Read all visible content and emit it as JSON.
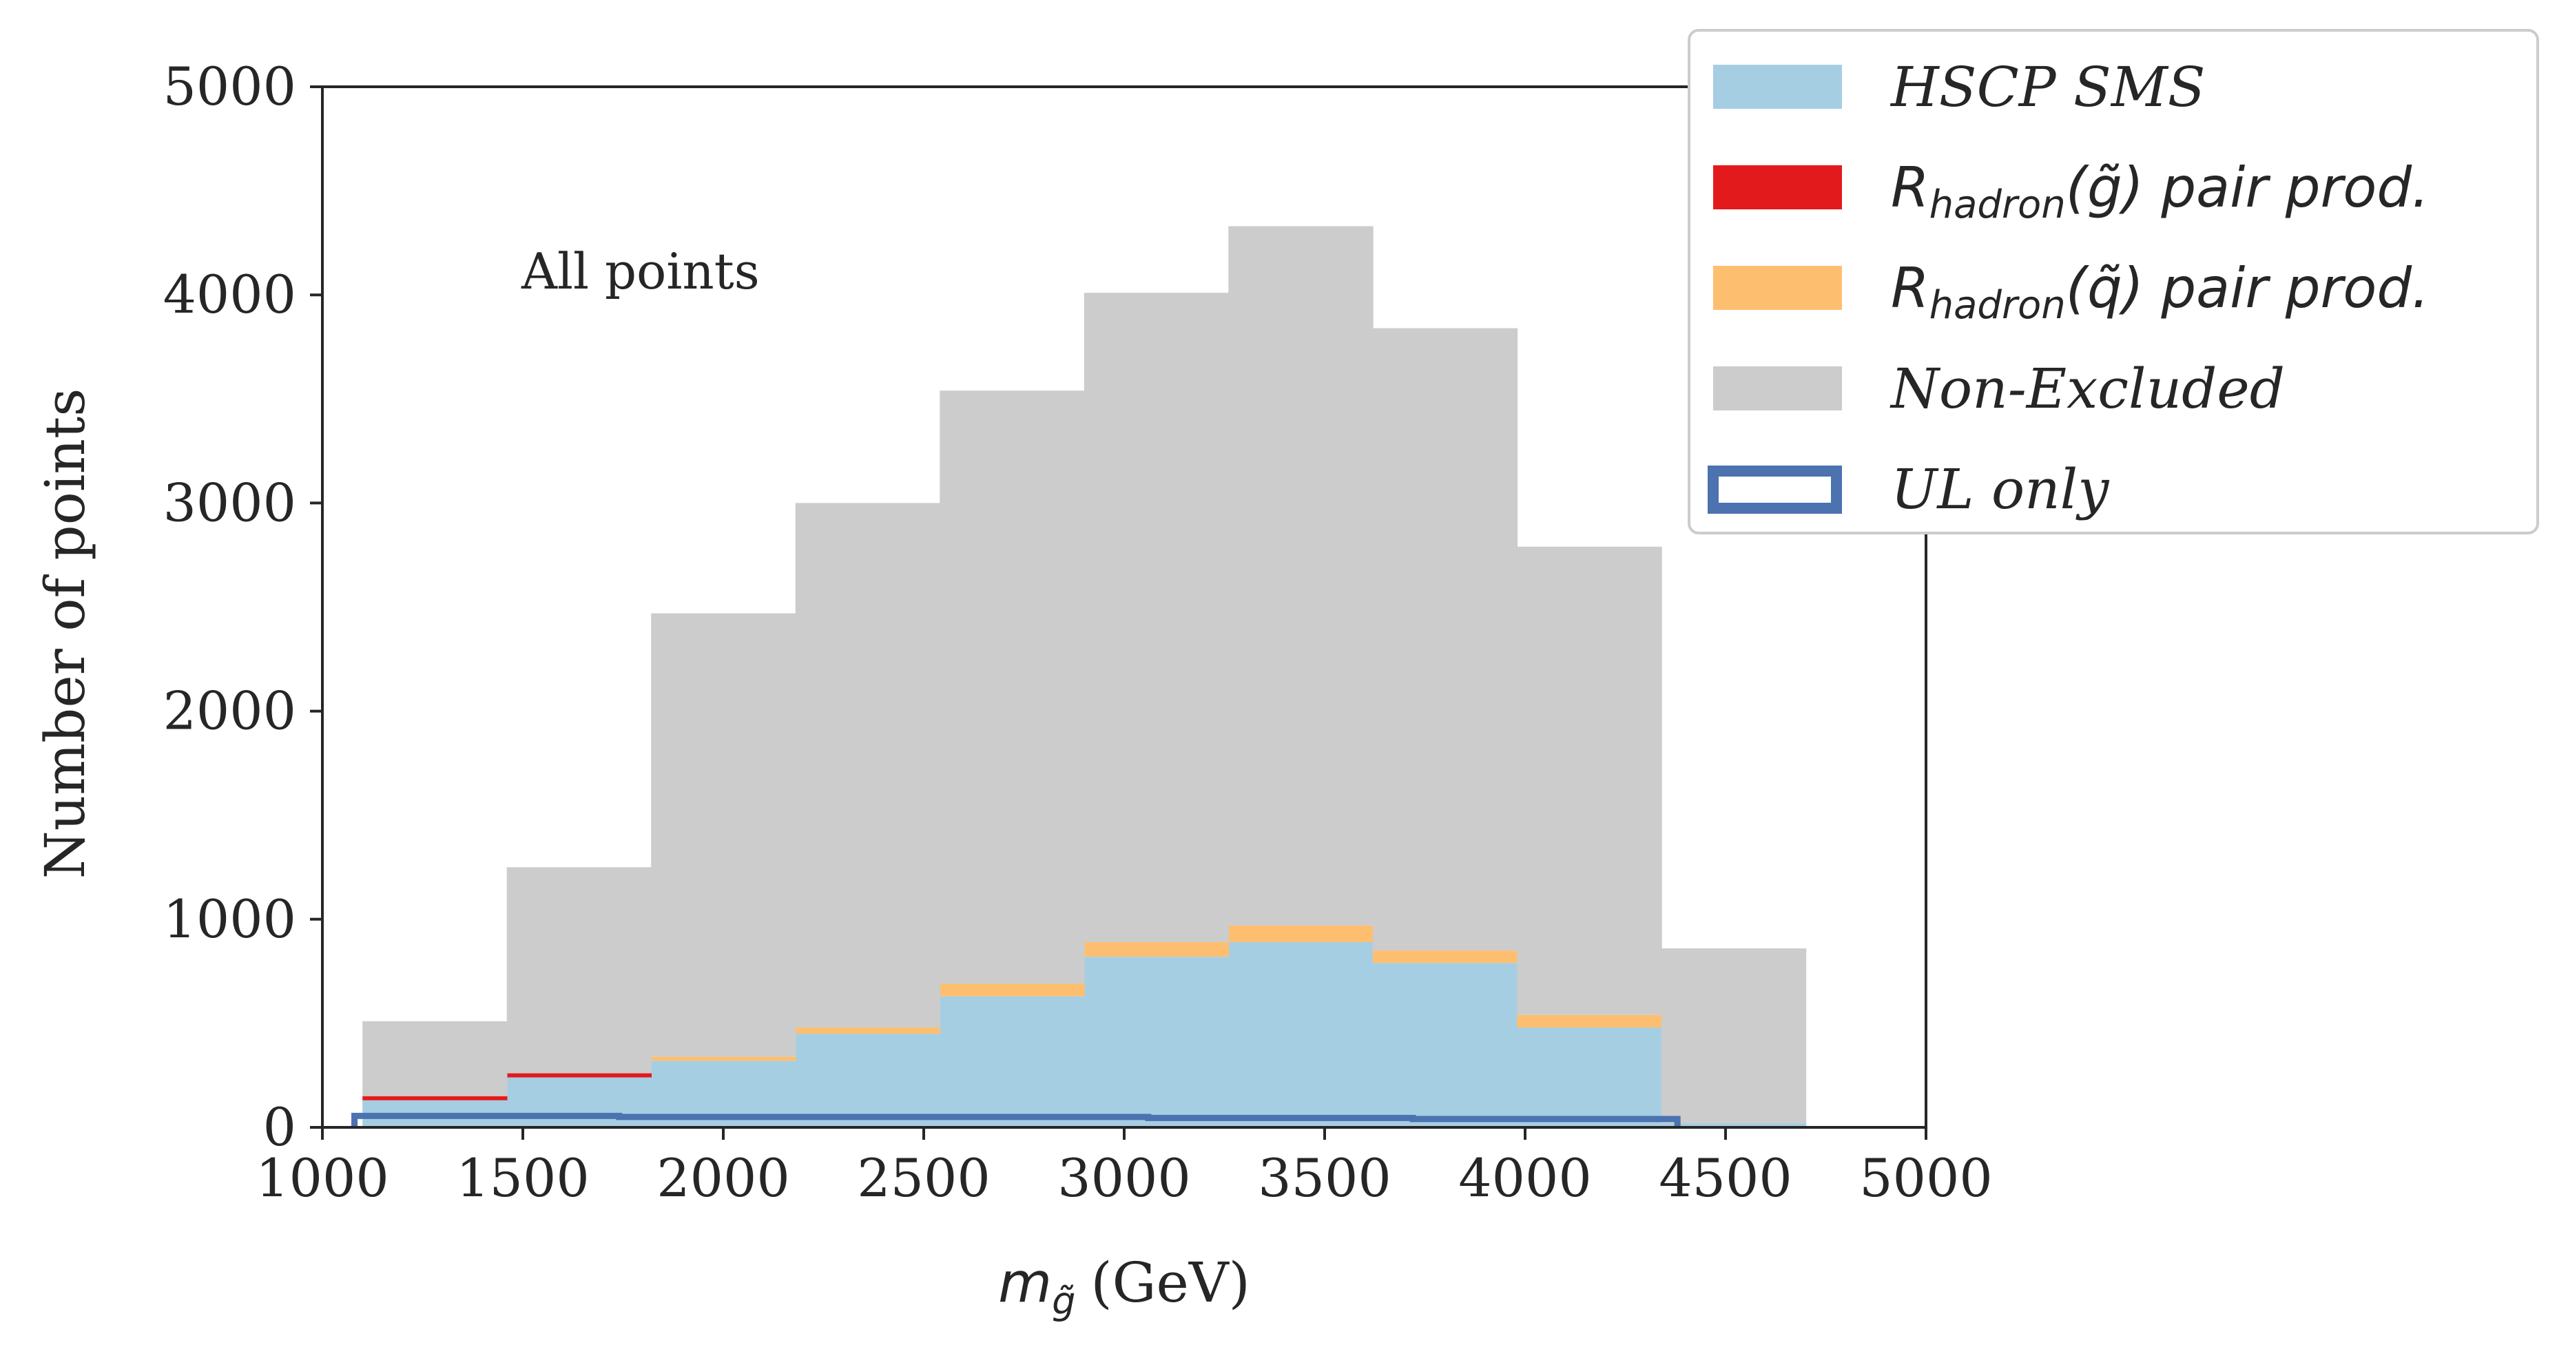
{
  "chart_data": {
    "type": "bar",
    "subtype": "stacked-histogram",
    "xlabel_base": "m",
    "xlabel_sub": "g̃",
    "xlabel_unit": "(GeV)",
    "ylabel": "Number of points",
    "annotation": "All points",
    "xlim": [
      1000,
      5000
    ],
    "ylim": [
      0,
      5000
    ],
    "xticks": [
      1000,
      1500,
      2000,
      2500,
      3000,
      3500,
      4000,
      4500,
      5000
    ],
    "yticks": [
      0,
      1000,
      2000,
      3000,
      4000,
      5000
    ],
    "grid": false,
    "legend_placement": "top-right",
    "bin_edges": [
      1100,
      1460,
      1820,
      2180,
      2540,
      2900,
      3260,
      3620,
      3980,
      4340,
      4700
    ],
    "series": [
      {
        "name": "HSCP SMS",
        "color": "#a6cee3",
        "style": "filled",
        "values": [
          130,
          240,
          320,
          450,
          630,
          820,
          890,
          790,
          480,
          20
        ]
      },
      {
        "name": "R_hadron(g̃) pair prod.",
        "color": "#e31a1c",
        "style": "filled",
        "values": [
          20,
          20,
          0,
          0,
          0,
          0,
          0,
          0,
          0,
          0
        ]
      },
      {
        "name": "R_hadron(q̃) pair prod.",
        "color": "#fdbf6f",
        "style": "filled",
        "values": [
          0,
          0,
          20,
          30,
          60,
          70,
          80,
          60,
          60,
          0
        ]
      },
      {
        "name": "Non-Excluded",
        "color": "#cccccc",
        "style": "filled",
        "values": [
          360,
          990,
          2130,
          2520,
          2850,
          3120,
          3360,
          2990,
          2250,
          840
        ]
      }
    ],
    "outline_series": {
      "name": "UL only",
      "color": "#4c72b0",
      "style": "step-outline",
      "bin_edges": [
        1080,
        1740,
        2400,
        3060,
        3720,
        4380
      ],
      "values": [
        55,
        50,
        50,
        45,
        40
      ]
    },
    "legend": [
      {
        "label_main": "HSCP SMS",
        "label_sub": "",
        "label_tail": "",
        "color": "#a6cee3",
        "kind": "patch"
      },
      {
        "label_main": "R",
        "label_sub": "hadron",
        "label_tail": "(g̃) pair prod.",
        "color": "#e31a1c",
        "kind": "patch"
      },
      {
        "label_main": "R",
        "label_sub": "hadron",
        "label_tail": "(q̃) pair prod.",
        "color": "#fdbf6f",
        "kind": "patch"
      },
      {
        "label_main": "Non-Excluded",
        "label_sub": "",
        "label_tail": "",
        "color": "#cccccc",
        "kind": "patch"
      },
      {
        "label_main": "UL only",
        "label_sub": "",
        "label_tail": "",
        "color": "#4c72b0",
        "kind": "outline"
      }
    ]
  }
}
